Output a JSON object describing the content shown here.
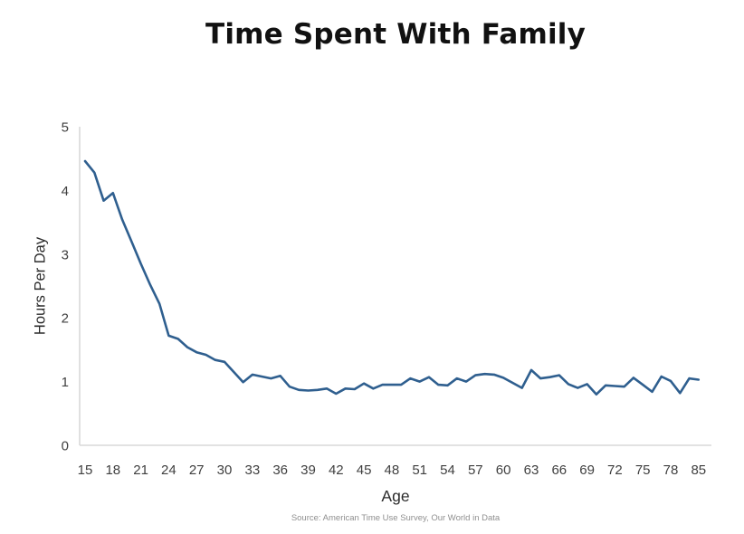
{
  "header": {
    "title": "Time Spent With Family"
  },
  "chart_data": {
    "type": "line",
    "title": "Time Spent With Family",
    "xlabel": "Age",
    "ylabel": "Hours Per Day",
    "source": "Source: American Time Use Survey, Our World in Data",
    "x": [
      15,
      16,
      17,
      18,
      19,
      20,
      21,
      22,
      23,
      24,
      25,
      26,
      27,
      28,
      29,
      30,
      31,
      32,
      33,
      34,
      35,
      36,
      37,
      38,
      39,
      40,
      41,
      42,
      43,
      44,
      45,
      46,
      47,
      48,
      49,
      50,
      51,
      52,
      53,
      54,
      55,
      56,
      57,
      58,
      59,
      60,
      61,
      62,
      63,
      64,
      65,
      66,
      67,
      68,
      69,
      70,
      71,
      72,
      73,
      74,
      75,
      76,
      77,
      78,
      79,
      80,
      85
    ],
    "values": [
      4.46,
      4.28,
      3.84,
      3.96,
      3.54,
      3.2,
      2.85,
      2.52,
      2.22,
      1.72,
      1.67,
      1.54,
      1.46,
      1.42,
      1.34,
      1.31,
      1.15,
      0.99,
      1.11,
      1.08,
      1.05,
      1.09,
      0.92,
      0.87,
      0.86,
      0.87,
      0.89,
      0.81,
      0.89,
      0.88,
      0.97,
      0.89,
      0.95,
      0.95,
      0.95,
      1.05,
      1.0,
      1.07,
      0.95,
      0.94,
      1.05,
      1.0,
      1.1,
      1.12,
      1.11,
      1.06,
      0.98,
      0.9,
      1.18,
      1.05,
      1.07,
      1.1,
      0.96,
      0.9,
      0.96,
      0.8,
      0.94,
      0.93,
      0.92,
      1.06,
      0.95,
      0.84,
      1.08,
      1.01,
      0.82,
      1.05,
      1.03
    ],
    "ylim": [
      0,
      5
    ],
    "yticks": [
      0,
      1,
      2,
      3,
      4,
      5
    ],
    "xticks": [
      15,
      18,
      21,
      24,
      27,
      30,
      33,
      36,
      39,
      42,
      45,
      48,
      51,
      54,
      57,
      60,
      63,
      66,
      69,
      72,
      75,
      78,
      85
    ],
    "line_color": "#2f5f8f",
    "axis_color": "#d9d9d9",
    "tick_color": "#3f3f3f",
    "grid": false,
    "legend": "none"
  }
}
